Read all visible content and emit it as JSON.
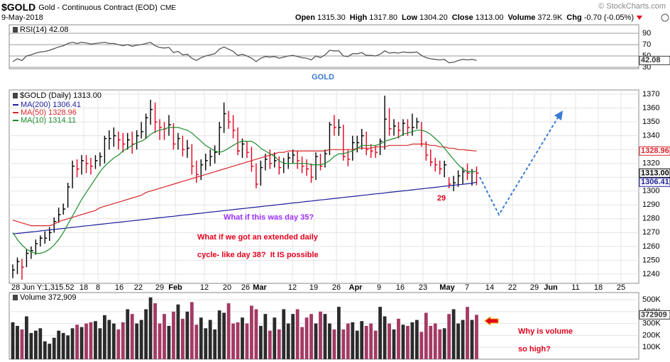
{
  "header": {
    "symbol": "$GOLD",
    "name": "Gold - Continuous Contract (EOD)",
    "exchange": "CME",
    "date": "9-May-2018",
    "quote": [
      {
        "label": "Open",
        "value": "1315.30"
      },
      {
        "label": "High",
        "value": "1317.80"
      },
      {
        "label": "Low",
        "value": "1304.20"
      },
      {
        "label": "Close",
        "value": "1313.00"
      },
      {
        "label": "Volume",
        "value": "372.9K"
      },
      {
        "label": "Chg",
        "value": "-0.70 (-0.05%)"
      }
    ],
    "credit": "© StockCharts.com"
  },
  "annotations": {
    "gold": "GOLD",
    "count": "29",
    "question1": "What if this was day 35?",
    "question2": [
      "What if we got an extended daily",
      "cycle- like day 38?  It IS possible"
    ],
    "volume_note": [
      "Why is volume",
      "so high?"
    ]
  },
  "chart_data": [
    {
      "type": "line",
      "title": "RSI(14) 42.08",
      "color": "#555555",
      "ylim": [
        27.5,
        105
      ],
      "yticks": [
        90,
        70,
        50,
        30
      ],
      "values": [
        40,
        45,
        42,
        50,
        52,
        55,
        57,
        58,
        60,
        63,
        66,
        68,
        72,
        74,
        72,
        74,
        73,
        71,
        72,
        73,
        74,
        72,
        72,
        70,
        68,
        70,
        67,
        69,
        70,
        72,
        74,
        68,
        65,
        64,
        65,
        56,
        58,
        52,
        53,
        46,
        42,
        47,
        50,
        52,
        54,
        62,
        66,
        62,
        58,
        51,
        53,
        50,
        46,
        40,
        46,
        49,
        48,
        49,
        46,
        48,
        50,
        51,
        49,
        47,
        46,
        43,
        50,
        47,
        52,
        60,
        59,
        59,
        50,
        49,
        54,
        54,
        56,
        51,
        51,
        50,
        53,
        59,
        55,
        56,
        55,
        57,
        56,
        56,
        57,
        51,
        47,
        45,
        44,
        43,
        44,
        38,
        39,
        42,
        44,
        43,
        44,
        42.08
      ],
      "last_tag": {
        "value": 42.08,
        "label": "42.08"
      }
    },
    {
      "type": "ohlc",
      "title": "$GOLD (Daily) 1313.00",
      "up_color": "#000000",
      "down_color": "#e3001b",
      "ylim": [
        1233.3,
        1373.1
      ],
      "yticks": [
        1240,
        1250,
        1260,
        1270,
        1280,
        1290,
        1300,
        1310,
        1320,
        1330,
        1340,
        1350,
        1360,
        1370
      ],
      "grid": true,
      "high": [
        1247,
        1252,
        1251,
        1258,
        1260,
        1265,
        1268,
        1271,
        1274,
        1281,
        1288,
        1291,
        1306,
        1322,
        1323,
        1326,
        1326,
        1324,
        1326,
        1328,
        1340,
        1344,
        1346,
        1343,
        1342,
        1342,
        1343,
        1344,
        1350,
        1356,
        1366,
        1364,
        1352,
        1350,
        1355,
        1349,
        1342,
        1340,
        1337,
        1334,
        1322,
        1323,
        1327,
        1330,
        1333,
        1350,
        1364,
        1358,
        1355,
        1346,
        1338,
        1336,
        1332,
        1320,
        1322,
        1327,
        1330,
        1328,
        1325,
        1324,
        1328,
        1330,
        1329,
        1325,
        1323,
        1320,
        1328,
        1327,
        1330,
        1350,
        1355,
        1352,
        1348,
        1330,
        1340,
        1340,
        1345,
        1343,
        1334,
        1333,
        1338,
        1369,
        1360,
        1352,
        1350,
        1352,
        1352,
        1356,
        1353,
        1350,
        1336,
        1330,
        1324,
        1322,
        1322,
        1310,
        1311,
        1315,
        1317,
        1320,
        1316,
        1317.8
      ],
      "low": [
        1237,
        1240,
        1236,
        1245,
        1251,
        1254,
        1260,
        1262,
        1264,
        1270,
        1277,
        1283,
        1288,
        1302,
        1310,
        1312,
        1313,
        1312,
        1316,
        1318,
        1320,
        1330,
        1332,
        1330,
        1328,
        1330,
        1327,
        1330,
        1338,
        1338,
        1348,
        1342,
        1337,
        1337,
        1340,
        1330,
        1330,
        1325,
        1324,
        1312,
        1306,
        1308,
        1315,
        1318,
        1320,
        1326,
        1342,
        1345,
        1338,
        1326,
        1324,
        1324,
        1314,
        1302,
        1304,
        1315,
        1316,
        1317,
        1312,
        1313,
        1316,
        1320,
        1316,
        1313,
        1311,
        1306,
        1308,
        1315,
        1317,
        1326,
        1340,
        1340,
        1322,
        1318,
        1322,
        1328,
        1330,
        1326,
        1324,
        1324,
        1326,
        1330,
        1340,
        1340,
        1338,
        1340,
        1340,
        1340,
        1345,
        1332,
        1322,
        1318,
        1314,
        1312,
        1310,
        1302,
        1300,
        1303,
        1305,
        1308,
        1304,
        1304.2
      ],
      "close": [
        1243,
        1249,
        1245,
        1255,
        1257,
        1262,
        1266,
        1266,
        1270,
        1278,
        1283,
        1287,
        1303,
        1318,
        1316,
        1322,
        1320,
        1318,
        1322,
        1325,
        1338,
        1338,
        1340,
        1337,
        1334,
        1337,
        1334,
        1340,
        1343,
        1353,
        1359,
        1350,
        1346,
        1345,
        1348,
        1334,
        1338,
        1330,
        1331,
        1318,
        1312,
        1319,
        1322,
        1325,
        1328,
        1346,
        1356,
        1350,
        1344,
        1329,
        1334,
        1328,
        1318,
        1305,
        1317,
        1323,
        1320,
        1322,
        1317,
        1320,
        1324,
        1326,
        1322,
        1318,
        1316,
        1310,
        1325,
        1318,
        1327,
        1348,
        1346,
        1346,
        1325,
        1323,
        1335,
        1335,
        1340,
        1330,
        1329,
        1328,
        1336,
        1352,
        1345,
        1347,
        1344,
        1349,
        1346,
        1346,
        1350,
        1334,
        1326,
        1321,
        1319,
        1316,
        1319,
        1305,
        1306,
        1311,
        1314,
        1313,
        1314,
        1313
      ],
      "series": [
        {
          "name": "MA(200) 1306.41",
          "color": "#1c1c9c",
          "values": [
            1269.0,
            1269.4,
            1269.7,
            1270.1,
            1270.5,
            1270.8,
            1271.2,
            1271.6,
            1271.9,
            1272.3,
            1272.7,
            1273.0,
            1273.4,
            1273.8,
            1274.1,
            1274.5,
            1274.9,
            1275.2,
            1275.6,
            1276.0,
            1276.3,
            1276.7,
            1277.1,
            1277.4,
            1277.8,
            1278.2,
            1278.5,
            1278.9,
            1279.3,
            1279.6,
            1280.0,
            1280.4,
            1280.7,
            1281.1,
            1281.5,
            1281.8,
            1282.2,
            1282.6,
            1282.9,
            1283.3,
            1283.7,
            1284.0,
            1284.4,
            1284.8,
            1285.1,
            1285.5,
            1285.9,
            1286.2,
            1286.6,
            1287.0,
            1287.3,
            1287.7,
            1288.1,
            1288.4,
            1288.8,
            1289.2,
            1289.5,
            1289.9,
            1290.3,
            1290.6,
            1291.0,
            1291.4,
            1291.7,
            1292.1,
            1292.5,
            1292.8,
            1293.2,
            1293.6,
            1293.9,
            1294.3,
            1294.7,
            1295.0,
            1295.4,
            1295.8,
            1296.1,
            1296.5,
            1296.9,
            1297.2,
            1297.6,
            1298.0,
            1298.3,
            1298.7,
            1299.1,
            1299.4,
            1299.8,
            1300.2,
            1300.5,
            1300.9,
            1301.3,
            1301.6,
            1302.0,
            1302.4,
            1302.7,
            1303.1,
            1303.5,
            1303.8,
            1304.2,
            1304.6,
            1304.9,
            1305.3,
            1305.7,
            1306.41
          ]
        },
        {
          "name": "MA(50) 1328.96",
          "color": "#d8262b",
          "values": [
            1279,
            1278,
            1277,
            1276,
            1275,
            1275,
            1275,
            1275,
            1275,
            1276,
            1278,
            1279,
            1280,
            1281,
            1282,
            1283,
            1284,
            1285,
            1286,
            1288,
            1289,
            1290,
            1291,
            1292,
            1293,
            1294,
            1295,
            1296,
            1297,
            1299,
            1300,
            1301,
            1302,
            1303,
            1304,
            1305,
            1306,
            1307,
            1308,
            1309,
            1310,
            1311,
            1312,
            1313,
            1314,
            1315,
            1316,
            1317,
            1318,
            1319,
            1320,
            1321,
            1322,
            1323,
            1324,
            1325,
            1326,
            1327,
            1328,
            1328,
            1329,
            1329,
            1329,
            1329,
            1329,
            1329,
            1329,
            1329,
            1329,
            1330,
            1330,
            1330,
            1330,
            1330,
            1330,
            1331,
            1331,
            1331,
            1331,
            1332,
            1332,
            1332,
            1333,
            1333,
            1333,
            1333,
            1333,
            1334,
            1334,
            1334,
            1334,
            1333,
            1333,
            1332,
            1332,
            1331,
            1331,
            1330,
            1330,
            1329.5,
            1329.2,
            1328.96
          ]
        },
        {
          "name": "MA(10) 1314.11",
          "color": "#1f8c2d",
          "values": [
            1270,
            1265,
            1261,
            1258,
            1256,
            1255,
            1255,
            1256,
            1258,
            1261,
            1265,
            1270,
            1276,
            1282,
            1288,
            1294,
            1299,
            1304,
            1309,
            1314,
            1318,
            1321,
            1324,
            1326,
            1329,
            1331,
            1333,
            1335,
            1336,
            1338,
            1341,
            1343,
            1344,
            1345,
            1346,
            1346,
            1346,
            1345,
            1344,
            1342,
            1339,
            1336,
            1333,
            1331,
            1329,
            1328,
            1329,
            1331,
            1333,
            1335,
            1336,
            1336,
            1336,
            1334,
            1331,
            1329,
            1327,
            1325,
            1322,
            1320,
            1320,
            1320,
            1320,
            1320,
            1320,
            1319,
            1319,
            1319,
            1320,
            1322,
            1325,
            1327,
            1327,
            1328,
            1329,
            1331,
            1333,
            1333,
            1333,
            1333,
            1334,
            1336,
            1337,
            1338,
            1339,
            1341,
            1342,
            1343,
            1344,
            1344,
            1343,
            1341,
            1338,
            1335,
            1331,
            1327,
            1323,
            1319,
            1316,
            1314,
            1314,
            1314.11
          ]
        }
      ],
      "price_tags": [
        {
          "value": 1328.96,
          "label": "1328.96",
          "color": "#d8262b"
        },
        {
          "value": 1313,
          "label": "1313.00",
          "color": "#000000"
        },
        {
          "value": 1306.41,
          "label": "1306.41",
          "color": "#1c1c9c"
        }
      ],
      "x_labels": [
        "18",
        "8",
        "16",
        "22",
        "29",
        "Feb",
        "12",
        "20",
        "26",
        "Mar",
        "12",
        "19",
        "26",
        "Apr",
        "9",
        "16",
        "23",
        "May",
        "7",
        "14",
        "22",
        "29",
        "Jun",
        "11",
        "18",
        "25"
      ],
      "corner_note": "28 Jun Y:1,315.52"
    },
    {
      "type": "bar",
      "title": "Volume 372,909",
      "up_color": "#2b2b2b",
      "down_color": "#a33a64",
      "ylim": [
        0,
        560000
      ],
      "yticks": [
        {
          "value": 500000,
          "label": "500K"
        },
        {
          "value": 400000,
          "label": "400K"
        },
        {
          "value": 300000,
          "label": "300K"
        },
        {
          "value": 200000,
          "label": "200K"
        },
        {
          "value": 100000,
          "label": "100K"
        }
      ],
      "values": [
        310000,
        280000,
        250000,
        360000,
        220000,
        240000,
        260000,
        150000,
        130000,
        180000,
        240000,
        220000,
        200000,
        260000,
        290000,
        270000,
        300000,
        310000,
        320000,
        260000,
        370000,
        330000,
        300000,
        250000,
        310000,
        420000,
        380000,
        300000,
        330000,
        420000,
        520000,
        470000,
        300000,
        380000,
        280000,
        400000,
        460000,
        340000,
        400000,
        480000,
        290000,
        350000,
        260000,
        330000,
        250000,
        410000,
        390000,
        470000,
        300000,
        310000,
        350000,
        300000,
        450000,
        420000,
        280000,
        380000,
        240000,
        350000,
        250000,
        420000,
        300000,
        380000,
        420000,
        270000,
        350000,
        380000,
        300000,
        400000,
        380000,
        300000,
        250000,
        440000,
        250000,
        300000,
        310000,
        240000,
        320000,
        280000,
        300000,
        240000,
        440000,
        360000,
        300000,
        250000,
        340000,
        290000,
        280000,
        310000,
        330000,
        230000,
        390000,
        280000,
        300000,
        250000,
        260000,
        380000,
        420000,
        300000,
        330000,
        440000,
        330000,
        372909
      ],
      "last_tag": {
        "value": 372909,
        "label": "372909"
      }
    }
  ]
}
